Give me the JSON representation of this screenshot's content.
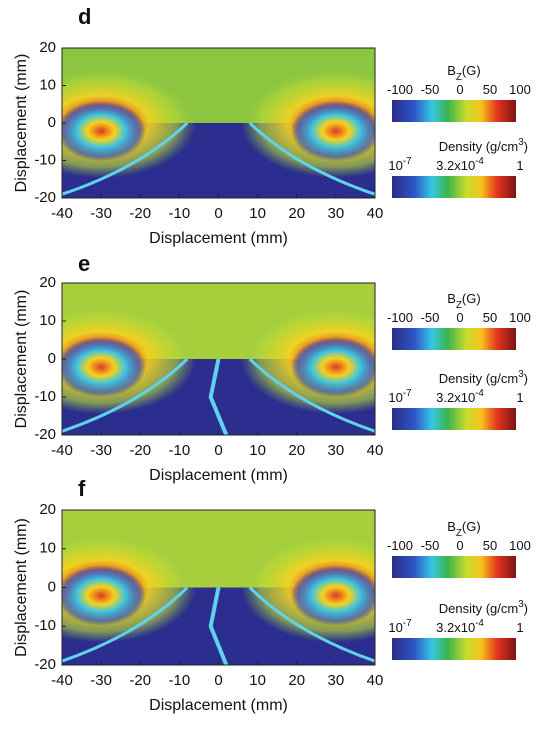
{
  "panels": [
    {
      "label": "d",
      "x_label": "Displacement (mm)",
      "y_label": "Displacement (mm)",
      "xlim": [
        -40,
        40
      ],
      "ylim": [
        -20,
        20
      ],
      "xticks": [
        -40,
        -30,
        -20,
        -10,
        0,
        10,
        20,
        30,
        40
      ],
      "yticks": [
        -20,
        -10,
        0,
        10,
        20
      ],
      "colorbars": [
        {
          "title": {
            "main": "B",
            "sub": "Z",
            "rest": "(G)"
          },
          "ticks": [
            {
              "base": "-100"
            },
            {
              "base": "-50"
            },
            {
              "base": "0"
            },
            {
              "base": "50"
            },
            {
              "base": "100"
            }
          ]
        },
        {
          "title": {
            "main": "Density (g/cm",
            "sup": "3",
            "rest": ")"
          },
          "ticks": [
            {
              "base": "10",
              "sup": "-7"
            },
            {
              "base": "3.2x10",
              "sup": "-4"
            },
            {
              "base": "1"
            }
          ]
        }
      ]
    },
    {
      "label": "e",
      "x_label": "Displacement (mm)",
      "y_label": "Displacement (mm)",
      "xlim": [
        -40,
        40
      ],
      "ylim": [
        -20,
        20
      ],
      "xticks": [
        -40,
        -30,
        -20,
        -10,
        0,
        10,
        20,
        30,
        40
      ],
      "yticks": [
        -20,
        -10,
        0,
        10,
        20
      ],
      "colorbars": [
        {
          "title": {
            "main": "B",
            "sub": "Z",
            "rest": "(G)"
          },
          "ticks": [
            {
              "base": "-100"
            },
            {
              "base": "-50"
            },
            {
              "base": "0"
            },
            {
              "base": "50"
            },
            {
              "base": "100"
            }
          ]
        },
        {
          "title": {
            "main": "Density (g/cm",
            "sup": "3",
            "rest": ")"
          },
          "ticks": [
            {
              "base": "10",
              "sup": "-7"
            },
            {
              "base": "3.2x10",
              "sup": "-4"
            },
            {
              "base": "1"
            }
          ]
        }
      ]
    },
    {
      "label": "f",
      "x_label": "Displacement (mm)",
      "y_label": "Displacement (mm)",
      "xlim": [
        -40,
        40
      ],
      "ylim": [
        -20,
        20
      ],
      "xticks": [
        -40,
        -30,
        -20,
        -10,
        0,
        10,
        20,
        30,
        40
      ],
      "yticks": [
        -20,
        -10,
        0,
        10,
        20
      ],
      "colorbars": [
        {
          "title": {
            "main": "B",
            "sub": "Z",
            "rest": "(G)"
          },
          "ticks": [
            {
              "base": "-100"
            },
            {
              "base": "-50"
            },
            {
              "base": "0"
            },
            {
              "base": "50"
            },
            {
              "base": "100"
            }
          ]
        },
        {
          "title": {
            "main": "Density (g/cm",
            "sup": "3",
            "rest": ")"
          },
          "ticks": [
            {
              "base": "10",
              "sup": "-7"
            },
            {
              "base": "3.2x10",
              "sup": "-4"
            },
            {
              "base": "1"
            }
          ]
        }
      ]
    }
  ]
}
